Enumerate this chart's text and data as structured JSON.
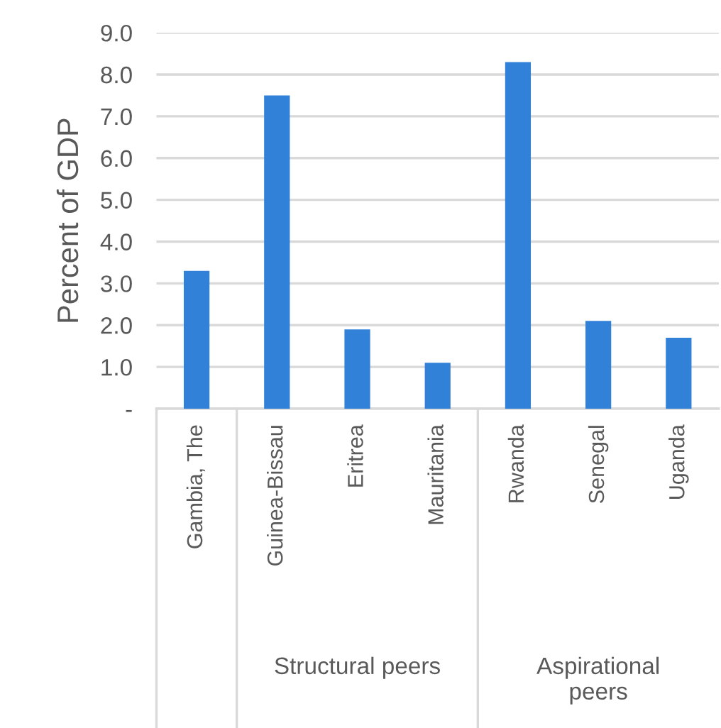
{
  "chart_data": {
    "type": "bar",
    "ylabel": "Percent of GDP",
    "categories": [
      "Gambia, The",
      "Guinea-Bissau",
      "Eritrea",
      "Mauritania",
      "Rwanda",
      "Senegal",
      "Uganda"
    ],
    "series": [
      {
        "color": "#3181d9",
        "values": [
          3.3,
          7.5,
          1.9,
          1.1,
          8.3,
          2.1,
          1.7
        ]
      }
    ],
    "ylim": [
      0,
      9
    ],
    "yticks": [
      {
        "value": 0,
        "label": "-"
      },
      {
        "value": 1,
        "label": "1.0"
      },
      {
        "value": 2,
        "label": "2.0"
      },
      {
        "value": 3,
        "label": "3.0"
      },
      {
        "value": 4,
        "label": "4.0"
      },
      {
        "value": 5,
        "label": "5.0"
      },
      {
        "value": 6,
        "label": "6.0"
      },
      {
        "value": 7,
        "label": "7.0"
      },
      {
        "value": 8,
        "label": "8.0"
      },
      {
        "value": 9,
        "label": "9.0"
      }
    ],
    "annotations": [
      "Structural peers",
      "Aspirational\npeers"
    ],
    "grid": "y",
    "legend": false
  }
}
